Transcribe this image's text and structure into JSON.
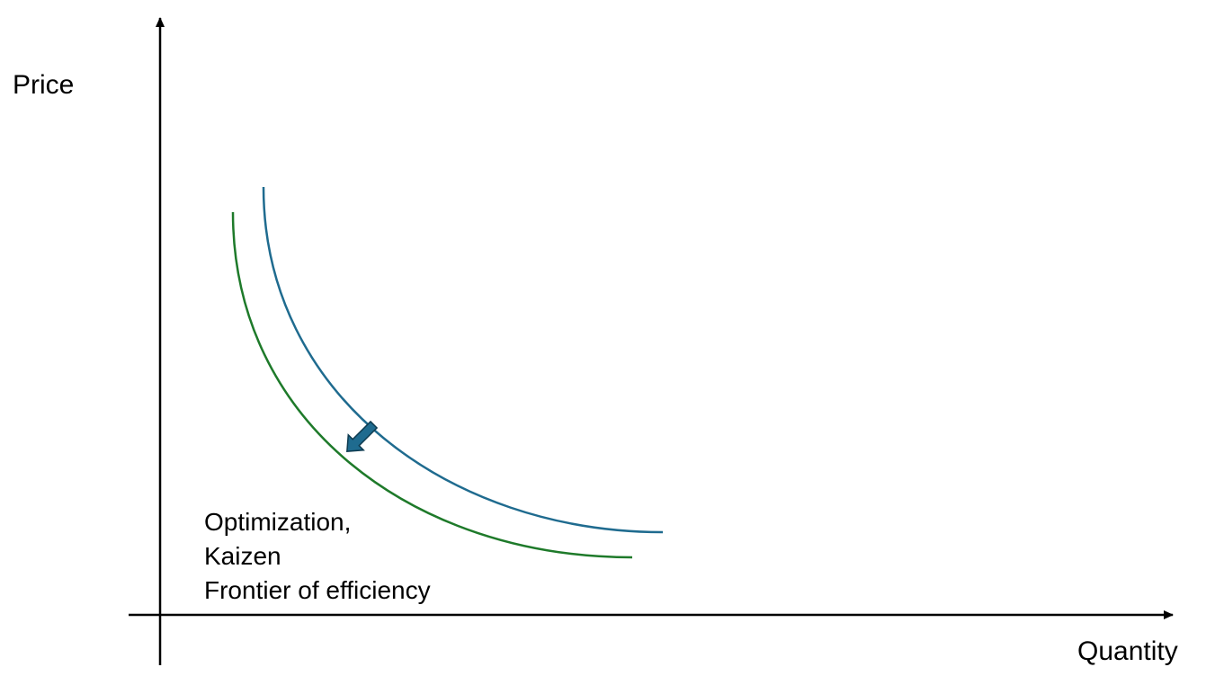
{
  "axes": {
    "y_label": "Price",
    "x_label": "Quantity"
  },
  "curves": [
    {
      "name": "blue-curve",
      "color": "#1f6b8f"
    },
    {
      "name": "green-curve",
      "color": "#1e7a2a"
    }
  ],
  "arrow": {
    "color": "#1f6b8f",
    "direction": "down-left"
  },
  "annotation": {
    "line1": "Optimization,",
    "line2": "Kaizen",
    "line3": "Frontier of efficiency"
  },
  "colors": {
    "axis": "#000000",
    "background": "#ffffff"
  }
}
